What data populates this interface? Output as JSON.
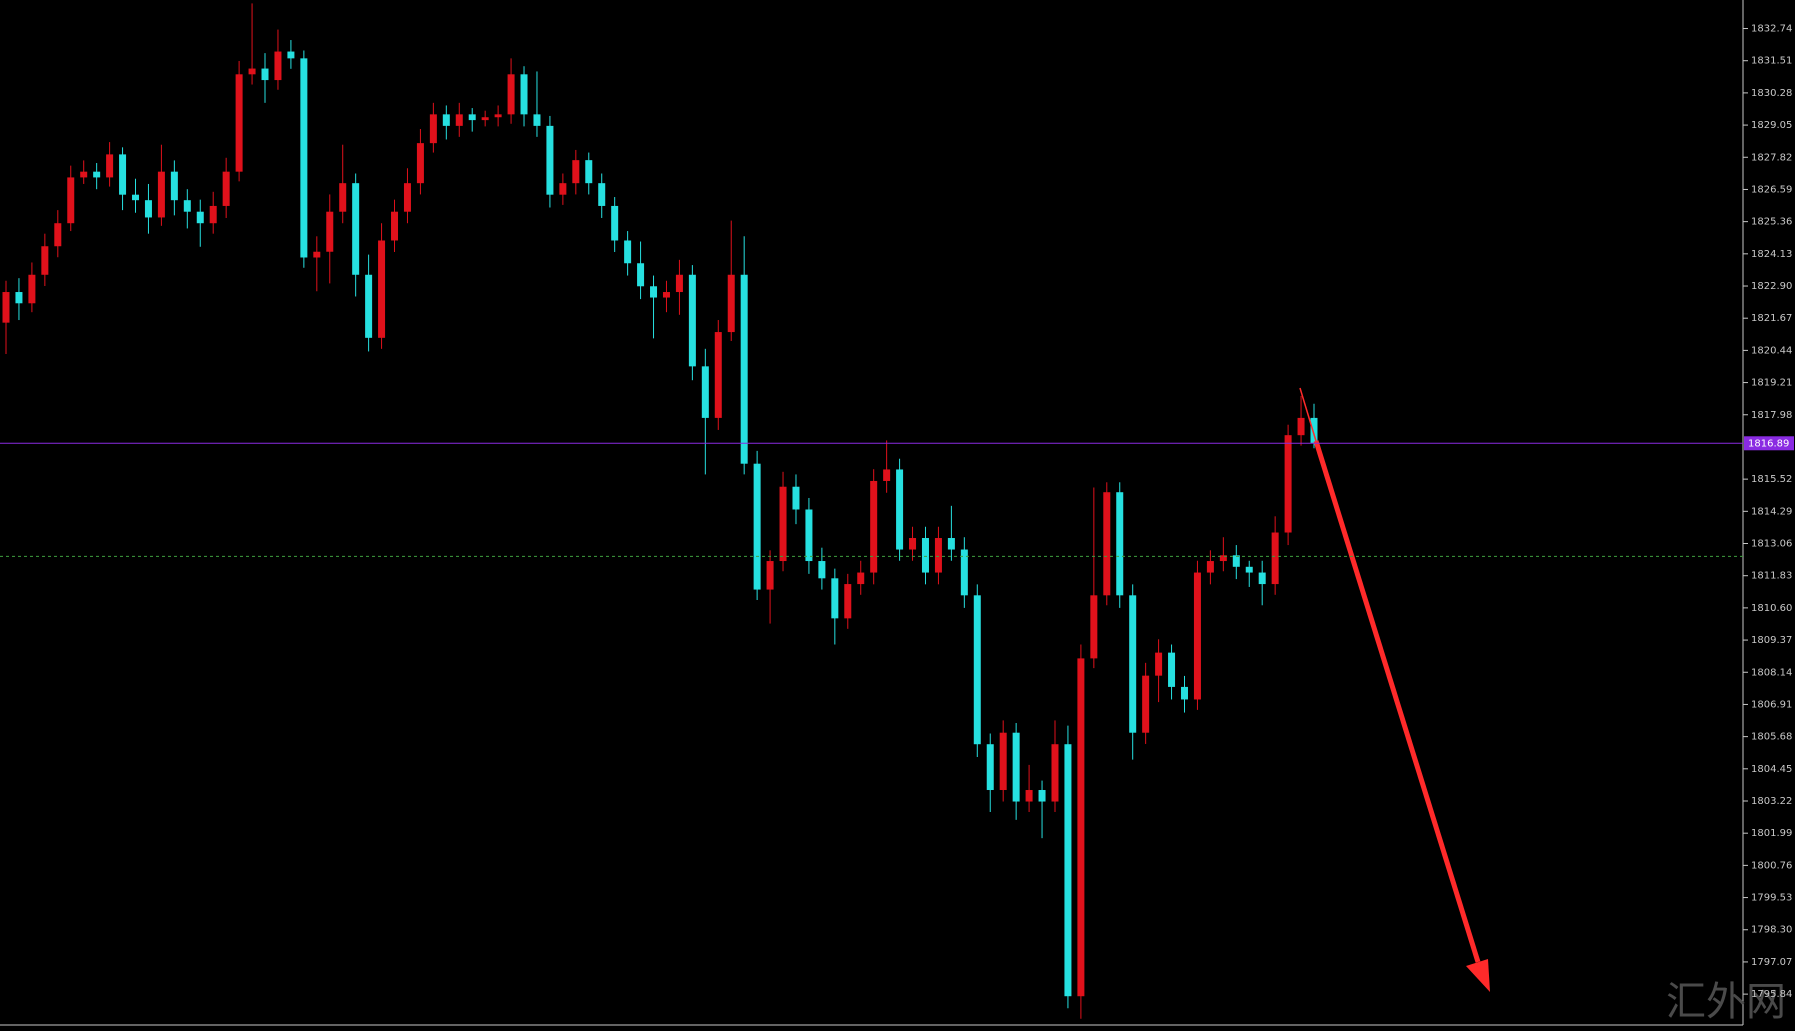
{
  "chart_data": {
    "type": "candlestick",
    "ylim": [
      1794.66,
      1833.83
    ],
    "yticks": [
      1832.74,
      1831.51,
      1830.28,
      1829.05,
      1827.82,
      1826.59,
      1825.36,
      1824.13,
      {
        "value": 1822.9,
        "label": "1822.90"
      },
      1821.67,
      1820.44,
      1819.21,
      1817.98,
      1815.52,
      1814.29,
      1813.06,
      1811.83,
      {
        "value": 1810.6,
        "label": "1810.60"
      },
      1809.37,
      1808.14,
      1806.91,
      1805.68,
      1804.45,
      1803.22,
      1801.99,
      1800.76,
      1799.53,
      {
        "value": 1798.3,
        "label": "1798.30"
      },
      1797.07,
      1795.84
    ],
    "current_price": 1816.89,
    "current_price_color": "#8a2be2",
    "level_line": 1812.57,
    "level_line_color": "#3f9f3f",
    "up_color": "#e0111b",
    "down_color": "#26e0e0",
    "watermark": "汇外网",
    "ohlc": [
      [
        1821.5,
        1823.1,
        1820.3,
        1822.67
      ],
      [
        1822.67,
        1823.2,
        1821.6,
        1822.24
      ],
      [
        1822.24,
        1823.8,
        1821.9,
        1823.33
      ],
      [
        1823.33,
        1824.9,
        1822.9,
        1824.42
      ],
      [
        1824.42,
        1825.8,
        1824.0,
        1825.3
      ],
      [
        1825.3,
        1827.5,
        1825.0,
        1827.05
      ],
      [
        1827.05,
        1827.7,
        1826.8,
        1827.27
      ],
      [
        1827.27,
        1827.6,
        1826.6,
        1827.05
      ],
      [
        1827.05,
        1828.4,
        1826.7,
        1827.93
      ],
      [
        1827.93,
        1828.2,
        1825.8,
        1826.39
      ],
      [
        1826.39,
        1827.0,
        1825.7,
        1826.18
      ],
      [
        1826.18,
        1826.8,
        1824.9,
        1825.52
      ],
      [
        1825.52,
        1828.3,
        1825.2,
        1827.27
      ],
      [
        1827.27,
        1827.7,
        1825.6,
        1826.18
      ],
      [
        1826.18,
        1826.6,
        1825.1,
        1825.74
      ],
      [
        1825.74,
        1826.2,
        1824.4,
        1825.3
      ],
      [
        1825.3,
        1826.5,
        1824.9,
        1825.96
      ],
      [
        1825.96,
        1827.8,
        1825.5,
        1827.27
      ],
      [
        1827.27,
        1831.5,
        1826.9,
        1830.99
      ],
      [
        1830.99,
        1833.7,
        1830.6,
        1831.21
      ],
      [
        1831.21,
        1831.8,
        1829.9,
        1830.77
      ],
      [
        1830.77,
        1832.7,
        1830.4,
        1831.86
      ],
      [
        1831.86,
        1832.3,
        1831.2,
        1831.6
      ],
      [
        1831.6,
        1831.9,
        1823.6,
        1823.99
      ],
      [
        1823.99,
        1824.8,
        1822.7,
        1824.21
      ],
      [
        1824.21,
        1826.4,
        1823.0,
        1825.74
      ],
      [
        1825.74,
        1828.3,
        1825.3,
        1826.83
      ],
      [
        1826.83,
        1827.2,
        1822.5,
        1823.33
      ],
      [
        1823.33,
        1824.1,
        1820.4,
        1820.92
      ],
      [
        1820.92,
        1825.3,
        1820.5,
        1824.64
      ],
      [
        1824.64,
        1826.2,
        1824.2,
        1825.74
      ],
      [
        1825.74,
        1827.4,
        1825.3,
        1826.83
      ],
      [
        1826.83,
        1828.9,
        1826.4,
        1828.36
      ],
      [
        1828.36,
        1829.9,
        1828.0,
        1829.46
      ],
      [
        1829.46,
        1829.8,
        1828.5,
        1829.02
      ],
      [
        1829.02,
        1829.9,
        1828.6,
        1829.46
      ],
      [
        1829.46,
        1829.7,
        1828.8,
        1829.24
      ],
      [
        1829.24,
        1829.6,
        1829.0,
        1829.35
      ],
      [
        1829.35,
        1829.8,
        1829.0,
        1829.46
      ],
      [
        1829.46,
        1831.6,
        1829.1,
        1830.99
      ],
      [
        1830.99,
        1831.3,
        1829.0,
        1829.46
      ],
      [
        1829.46,
        1831.1,
        1828.6,
        1829.02
      ],
      [
        1829.02,
        1829.4,
        1825.9,
        1826.39
      ],
      [
        1826.39,
        1827.2,
        1826.0,
        1826.83
      ],
      [
        1826.83,
        1828.1,
        1826.4,
        1827.71
      ],
      [
        1827.71,
        1828.0,
        1826.4,
        1826.83
      ],
      [
        1826.83,
        1827.2,
        1825.5,
        1825.96
      ],
      [
        1825.96,
        1826.3,
        1824.2,
        1824.64
      ],
      [
        1824.64,
        1825.0,
        1823.3,
        1823.77
      ],
      [
        1823.77,
        1824.6,
        1822.4,
        1822.89
      ],
      [
        1822.89,
        1823.3,
        1820.9,
        1822.46
      ],
      [
        1822.46,
        1823.1,
        1821.9,
        1822.67
      ],
      [
        1822.67,
        1823.9,
        1821.8,
        1823.33
      ],
      [
        1823.33,
        1823.7,
        1819.3,
        1819.83
      ],
      [
        1819.83,
        1820.5,
        1815.7,
        1817.86
      ],
      [
        1817.86,
        1821.6,
        1817.4,
        1821.14
      ],
      [
        1821.14,
        1825.4,
        1820.8,
        1823.33
      ],
      [
        1823.33,
        1824.8,
        1815.7,
        1816.11
      ],
      [
        1816.11,
        1816.6,
        1810.9,
        1811.3
      ],
      [
        1811.3,
        1812.8,
        1810.0,
        1812.39
      ],
      [
        1812.39,
        1815.8,
        1812.0,
        1815.23
      ],
      [
        1815.23,
        1815.7,
        1813.8,
        1814.36
      ],
      [
        1814.36,
        1814.8,
        1811.9,
        1812.39
      ],
      [
        1812.39,
        1812.9,
        1811.3,
        1811.73
      ],
      [
        1811.73,
        1812.1,
        1809.2,
        1810.2
      ],
      [
        1810.2,
        1811.9,
        1809.8,
        1811.51
      ],
      [
        1811.51,
        1812.4,
        1811.1,
        1811.95
      ],
      [
        1811.95,
        1815.9,
        1811.5,
        1815.45
      ],
      [
        1815.45,
        1817.0,
        1815.0,
        1815.89
      ],
      [
        1815.89,
        1816.3,
        1812.4,
        1812.83
      ],
      [
        1812.83,
        1813.7,
        1812.4,
        1813.27
      ],
      [
        1813.27,
        1813.7,
        1811.5,
        1811.95
      ],
      [
        1811.95,
        1813.7,
        1811.5,
        1813.27
      ],
      [
        1813.27,
        1814.5,
        1812.4,
        1812.83
      ],
      [
        1812.83,
        1813.3,
        1810.6,
        1811.08
      ],
      [
        1811.08,
        1811.5,
        1804.9,
        1805.39
      ],
      [
        1805.39,
        1805.8,
        1802.8,
        1803.64
      ],
      [
        1803.64,
        1806.3,
        1803.2,
        1805.83
      ],
      [
        1805.83,
        1806.2,
        1802.5,
        1803.2
      ],
      [
        1803.2,
        1804.6,
        1802.8,
        1803.64
      ],
      [
        1803.64,
        1804.0,
        1801.8,
        1803.2
      ],
      [
        1803.2,
        1806.3,
        1802.8,
        1805.39
      ],
      [
        1805.39,
        1806.1,
        1795.3,
        1795.76
      ],
      [
        1795.76,
        1809.2,
        1794.9,
        1808.67
      ],
      [
        1808.67,
        1815.2,
        1808.3,
        1811.08
      ],
      [
        1811.08,
        1815.4,
        1810.7,
        1815.02
      ],
      [
        1815.02,
        1815.4,
        1810.6,
        1811.08
      ],
      [
        1811.08,
        1811.5,
        1804.8,
        1805.83
      ],
      [
        1805.83,
        1808.5,
        1805.4,
        1808.01
      ],
      [
        1808.01,
        1809.4,
        1807.0,
        1808.89
      ],
      [
        1808.89,
        1809.2,
        1807.1,
        1807.58
      ],
      [
        1807.58,
        1808.0,
        1806.6,
        1807.1
      ],
      [
        1807.1,
        1812.4,
        1806.7,
        1811.95
      ],
      [
        1811.95,
        1812.8,
        1811.5,
        1812.39
      ],
      [
        1812.39,
        1813.3,
        1812.0,
        1812.61
      ],
      [
        1812.61,
        1813.0,
        1811.7,
        1812.17
      ],
      [
        1812.17,
        1812.4,
        1811.4,
        1811.95
      ],
      [
        1811.95,
        1812.4,
        1810.7,
        1811.51
      ],
      [
        1811.51,
        1814.1,
        1811.1,
        1813.48
      ],
      [
        1813.48,
        1817.6,
        1813.0,
        1817.2
      ],
      [
        1817.2,
        1818.7,
        1816.8,
        1817.86
      ],
      [
        1817.86,
        1818.4,
        1816.7,
        1816.89
      ]
    ]
  }
}
